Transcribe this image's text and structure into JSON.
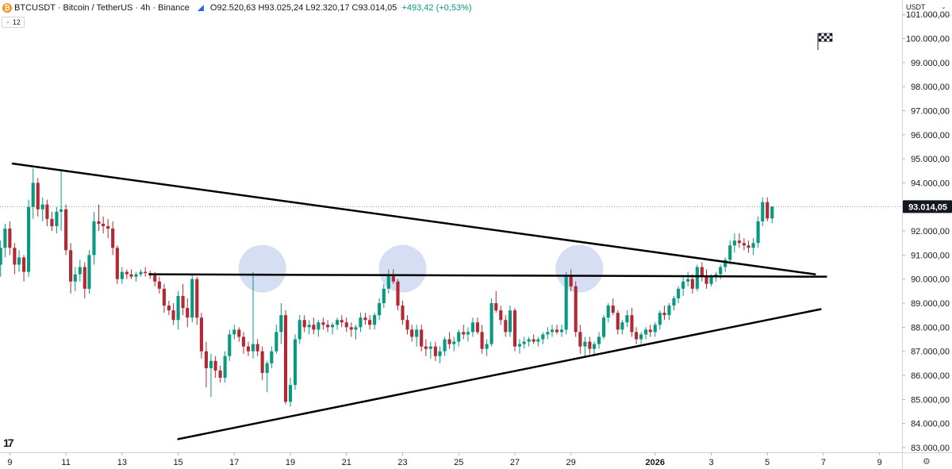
{
  "header": {
    "symbol_icon": "bitcoin-icon",
    "title": "BTCUSDT · Bitcoin / TetherUS · 4h · Binance",
    "ohlc": "O92.520,63 H93.025,24 L92.320,17 C93.014,05",
    "change": "+493,42 (+0,53%)"
  },
  "indicator_badge": "12",
  "price_scale": {
    "currency": "USDT",
    "last_price_label": "93.014,05",
    "colors": {
      "up": "#089981",
      "down": "#b22833",
      "last_price_bg": "#131722"
    }
  },
  "chart_data": {
    "type": "candlestick",
    "symbol": "BTCUSDT",
    "interval": "4h",
    "exchange": "Binance",
    "ylim": [
      82800,
      101600
    ],
    "xlim_days": [
      8.65,
      40.8
    ],
    "y_ticks": [
      {
        "v": 83000,
        "label": "83.000,00"
      },
      {
        "v": 84000,
        "label": "84.000,00"
      },
      {
        "v": 85000,
        "label": "85.000,00"
      },
      {
        "v": 86000,
        "label": "86.000,00"
      },
      {
        "v": 87000,
        "label": "87.000,00"
      },
      {
        "v": 88000,
        "label": "88.000,00"
      },
      {
        "v": 89000,
        "label": "89.000,00"
      },
      {
        "v": 90000,
        "label": "90.000,00"
      },
      {
        "v": 91000,
        "label": "91.000,00"
      },
      {
        "v": 92000,
        "label": "92.000,00"
      },
      {
        "v": 93000,
        "label": "93.000,00"
      },
      {
        "v": 94000,
        "label": "94.000,00"
      },
      {
        "v": 95000,
        "label": "95.000,00"
      },
      {
        "v": 96000,
        "label": "96.000,00"
      },
      {
        "v": 97000,
        "label": "97.000,00"
      },
      {
        "v": 98000,
        "label": "98.000,00"
      },
      {
        "v": 99000,
        "label": "99.000,00"
      },
      {
        "v": 100000,
        "label": "100.000,00"
      },
      {
        "v": 101000,
        "label": "101.000,00"
      }
    ],
    "x_ticks": [
      {
        "day": 9,
        "label": "9"
      },
      {
        "day": 11,
        "label": "11"
      },
      {
        "day": 13,
        "label": "13"
      },
      {
        "day": 15,
        "label": "15"
      },
      {
        "day": 17,
        "label": "17"
      },
      {
        "day": 19,
        "label": "19"
      },
      {
        "day": 21,
        "label": "21"
      },
      {
        "day": 23,
        "label": "23"
      },
      {
        "day": 25,
        "label": "25"
      },
      {
        "day": 27,
        "label": "27"
      },
      {
        "day": 29,
        "label": "29"
      },
      {
        "day": 32,
        "label": "2026",
        "bold": true
      },
      {
        "day": 34,
        "label": "3"
      },
      {
        "day": 36,
        "label": "5"
      },
      {
        "day": 38,
        "label": "7"
      },
      {
        "day": 40,
        "label": "9"
      }
    ],
    "last_price": 93014.05,
    "candles": [
      [
        8.67,
        90600,
        91600,
        90100,
        91300
      ],
      [
        8.83,
        91300,
        92300,
        90900,
        92100
      ],
      [
        9.0,
        92100,
        92400,
        91000,
        91300
      ],
      [
        9.17,
        91300,
        91500,
        90200,
        90600
      ],
      [
        9.33,
        90600,
        91200,
        90300,
        90900
      ],
      [
        9.5,
        90900,
        91000,
        89900,
        90300
      ],
      [
        9.67,
        90300,
        93300,
        90100,
        93000
      ],
      [
        9.83,
        93000,
        94600,
        92500,
        94000
      ],
      [
        10.0,
        94000,
        94200,
        92600,
        92900
      ],
      [
        10.17,
        92900,
        93400,
        92400,
        93100
      ],
      [
        10.33,
        93100,
        93300,
        92200,
        92500
      ],
      [
        10.5,
        92500,
        92800,
        92000,
        92200
      ],
      [
        10.67,
        92200,
        93000,
        91900,
        92800
      ],
      [
        10.83,
        92800,
        94500,
        92000,
        92900
      ],
      [
        11.0,
        92900,
        93100,
        91000,
        91200
      ],
      [
        11.17,
        91200,
        91500,
        89400,
        89900
      ],
      [
        11.33,
        89900,
        90500,
        89500,
        90200
      ],
      [
        11.5,
        90200,
        90800,
        89900,
        90500
      ],
      [
        11.67,
        90500,
        90700,
        89200,
        89600
      ],
      [
        11.83,
        89600,
        91200,
        89400,
        91000
      ],
      [
        12.0,
        91000,
        92800,
        90600,
        92400
      ],
      [
        12.17,
        92400,
        93100,
        92000,
        92300
      ],
      [
        12.33,
        92300,
        92600,
        91900,
        92200
      ],
      [
        12.5,
        92200,
        92500,
        91700,
        92100
      ],
      [
        12.67,
        92100,
        92400,
        91000,
        91300
      ],
      [
        12.83,
        91300,
        91400,
        89800,
        90000
      ],
      [
        13.0,
        90000,
        90500,
        89800,
        90300
      ],
      [
        13.17,
        90300,
        90400,
        90000,
        90200
      ],
      [
        13.33,
        90200,
        90400,
        90000,
        90100
      ],
      [
        13.5,
        90100,
        90300,
        89900,
        90200
      ],
      [
        13.67,
        90200,
        90400,
        90100,
        90300
      ],
      [
        13.83,
        90300,
        90500,
        90100,
        90250
      ],
      [
        14.0,
        90250,
        90350,
        90000,
        90150
      ],
      [
        14.17,
        90150,
        90300,
        89700,
        89900
      ],
      [
        14.33,
        89900,
        90100,
        89400,
        89600
      ],
      [
        14.5,
        89600,
        89800,
        88600,
        88900
      ],
      [
        14.67,
        88900,
        89100,
        88500,
        88700
      ],
      [
        14.83,
        88700,
        89000,
        88100,
        88300
      ],
      [
        15.0,
        88300,
        89500,
        87900,
        89300
      ],
      [
        15.17,
        89300,
        89800,
        88500,
        88800
      ],
      [
        15.33,
        88800,
        89200,
        88000,
        88400
      ],
      [
        15.5,
        88400,
        90200,
        88200,
        90000
      ],
      [
        15.67,
        90000,
        90100,
        88100,
        88400
      ],
      [
        15.83,
        88400,
        88600,
        86700,
        87000
      ],
      [
        16.0,
        87000,
        87400,
        85500,
        86300
      ],
      [
        16.17,
        86300,
        86900,
        85100,
        86600
      ],
      [
        16.33,
        86600,
        86800,
        85900,
        86200
      ],
      [
        16.5,
        86200,
        86400,
        85700,
        85900
      ],
      [
        16.67,
        85900,
        87000,
        85700,
        86800
      ],
      [
        16.83,
        86800,
        87900,
        86600,
        87700
      ],
      [
        17.0,
        87700,
        88100,
        87500,
        87900
      ],
      [
        17.17,
        87900,
        88000,
        87400,
        87600
      ],
      [
        17.33,
        87600,
        87800,
        86900,
        87200
      ],
      [
        17.5,
        87200,
        87400,
        86800,
        87000
      ],
      [
        17.67,
        87000,
        90300,
        86700,
        87300
      ],
      [
        17.83,
        87300,
        87500,
        86800,
        87000
      ],
      [
        18.0,
        87000,
        87200,
        85800,
        86100
      ],
      [
        18.17,
        86100,
        86600,
        85300,
        86500
      ],
      [
        18.33,
        86500,
        87200,
        86300,
        87000
      ],
      [
        18.5,
        87000,
        88100,
        86900,
        87800
      ],
      [
        18.67,
        87800,
        89000,
        87300,
        88500
      ],
      [
        18.83,
        88500,
        88700,
        84800,
        84900
      ],
      [
        19.0,
        84900,
        85900,
        84700,
        85600
      ],
      [
        19.17,
        85600,
        87700,
        85400,
        87500
      ],
      [
        19.33,
        87500,
        88500,
        87300,
        88300
      ],
      [
        19.5,
        88300,
        88500,
        87800,
        88000
      ],
      [
        19.67,
        88000,
        88300,
        87700,
        88100
      ],
      [
        19.83,
        88100,
        88400,
        87700,
        87900
      ],
      [
        20.0,
        87900,
        88300,
        87600,
        88200
      ],
      [
        20.17,
        88200,
        88400,
        87900,
        88100
      ],
      [
        20.33,
        88100,
        88300,
        87800,
        88000
      ],
      [
        20.5,
        88000,
        88200,
        87700,
        88100
      ],
      [
        20.67,
        88100,
        88400,
        87900,
        88300
      ],
      [
        20.83,
        88300,
        88500,
        88000,
        88200
      ],
      [
        21.0,
        88200,
        88400,
        87800,
        88000
      ],
      [
        21.17,
        88000,
        88200,
        87600,
        87900
      ],
      [
        21.33,
        87900,
        88100,
        87500,
        88000
      ],
      [
        21.5,
        88000,
        88600,
        87800,
        88400
      ],
      [
        21.67,
        88400,
        88600,
        88100,
        88300
      ],
      [
        21.83,
        88300,
        88500,
        87900,
        88100
      ],
      [
        22.0,
        88100,
        88600,
        87900,
        88500
      ],
      [
        22.17,
        88500,
        89200,
        88300,
        89000
      ],
      [
        22.33,
        89000,
        89800,
        88800,
        89600
      ],
      [
        22.5,
        89600,
        90400,
        89400,
        90200
      ],
      [
        22.67,
        90200,
        90400,
        89800,
        89900
      ],
      [
        22.83,
        89900,
        90000,
        88700,
        88900
      ],
      [
        23.0,
        88900,
        89100,
        88100,
        88300
      ],
      [
        23.17,
        88300,
        88500,
        87700,
        87900
      ],
      [
        23.33,
        87900,
        88100,
        87400,
        87600
      ],
      [
        23.5,
        87600,
        88100,
        87200,
        87900
      ],
      [
        23.67,
        87900,
        88100,
        87000,
        87200
      ],
      [
        23.83,
        87200,
        87500,
        86800,
        87100
      ],
      [
        24.0,
        87100,
        87400,
        86700,
        87200
      ],
      [
        24.17,
        87200,
        87400,
        86600,
        86800
      ],
      [
        24.33,
        86800,
        87200,
        86500,
        87000
      ],
      [
        24.5,
        87000,
        87600,
        86800,
        87500
      ],
      [
        24.67,
        87500,
        87800,
        87100,
        87300
      ],
      [
        24.83,
        87300,
        87600,
        87000,
        87400
      ],
      [
        25.0,
        87400,
        87900,
        87200,
        87800
      ],
      [
        25.17,
        87800,
        88100,
        87500,
        87700
      ],
      [
        25.33,
        87700,
        88000,
        87400,
        87800
      ],
      [
        25.5,
        87800,
        88400,
        87600,
        88200
      ],
      [
        25.67,
        88200,
        88400,
        87700,
        87800
      ],
      [
        25.83,
        87800,
        88100,
        86900,
        87100
      ],
      [
        26.0,
        87100,
        87500,
        86800,
        87300
      ],
      [
        26.17,
        87300,
        89200,
        87200,
        89000
      ],
      [
        26.33,
        89000,
        89500,
        88600,
        88700
      ],
      [
        26.5,
        88700,
        88900,
        88100,
        88300
      ],
      [
        26.67,
        88300,
        88500,
        87600,
        87800
      ],
      [
        26.83,
        87800,
        88900,
        87600,
        88700
      ],
      [
        27.0,
        88700,
        88800,
        87000,
        87200
      ],
      [
        27.17,
        87200,
        87500,
        86900,
        87300
      ],
      [
        27.33,
        87300,
        87600,
        87100,
        87400
      ],
      [
        27.5,
        87400,
        87600,
        87200,
        87500
      ],
      [
        27.67,
        87500,
        87700,
        87300,
        87400
      ],
      [
        27.83,
        87400,
        87600,
        87200,
        87500
      ],
      [
        28.0,
        87500,
        87800,
        87300,
        87700
      ],
      [
        28.17,
        87700,
        88000,
        87500,
        87800
      ],
      [
        28.33,
        87800,
        88100,
        87600,
        87900
      ],
      [
        28.5,
        87900,
        88100,
        87700,
        87800
      ],
      [
        28.67,
        87800,
        88100,
        87600,
        87900
      ],
      [
        28.83,
        87900,
        90300,
        87700,
        90100
      ],
      [
        29.0,
        90100,
        90400,
        89500,
        89700
      ],
      [
        29.17,
        89700,
        89900,
        87600,
        87800
      ],
      [
        29.33,
        87800,
        88100,
        86900,
        87200
      ],
      [
        29.5,
        87200,
        87600,
        86800,
        87400
      ],
      [
        29.67,
        87400,
        87600,
        86900,
        87100
      ],
      [
        29.83,
        87100,
        87400,
        86800,
        87300
      ],
      [
        30.0,
        87300,
        87800,
        87100,
        87600
      ],
      [
        30.17,
        87600,
        88500,
        87500,
        88400
      ],
      [
        30.33,
        88400,
        89000,
        88200,
        88900
      ],
      [
        30.5,
        88900,
        89200,
        88500,
        88600
      ],
      [
        30.67,
        88600,
        88700,
        87700,
        87900
      ],
      [
        30.83,
        87900,
        88300,
        87700,
        88200
      ],
      [
        31.0,
        88200,
        88700,
        88000,
        88500
      ],
      [
        31.17,
        88500,
        88800,
        87600,
        87800
      ],
      [
        31.33,
        87800,
        88000,
        87300,
        87500
      ],
      [
        31.5,
        87500,
        87800,
        87300,
        87700
      ],
      [
        31.67,
        87700,
        88000,
        87500,
        87900
      ],
      [
        31.83,
        87900,
        88100,
        87600,
        87800
      ],
      [
        32.0,
        87800,
        88200,
        87600,
        88100
      ],
      [
        32.17,
        88100,
        88700,
        87900,
        88600
      ],
      [
        32.33,
        88600,
        88900,
        88300,
        88500
      ],
      [
        32.5,
        88500,
        89000,
        88300,
        88900
      ],
      [
        32.67,
        88900,
        89300,
        88700,
        89200
      ],
      [
        32.83,
        89200,
        89700,
        89000,
        89600
      ],
      [
        33.0,
        89600,
        90100,
        89300,
        89900
      ],
      [
        33.17,
        89900,
        90300,
        89700,
        90000
      ],
      [
        33.33,
        90000,
        90200,
        89400,
        89600
      ],
      [
        33.5,
        89600,
        90600,
        89500,
        90500
      ],
      [
        33.67,
        90500,
        90700,
        89900,
        90100
      ],
      [
        33.83,
        90100,
        90400,
        89600,
        89800
      ],
      [
        34.0,
        89800,
        90200,
        89700,
        90100
      ],
      [
        34.17,
        90100,
        90300,
        89900,
        90200
      ],
      [
        34.33,
        90200,
        90600,
        90000,
        90500
      ],
      [
        34.5,
        90500,
        90900,
        90300,
        90800
      ],
      [
        34.67,
        90800,
        91600,
        90600,
        91400
      ],
      [
        34.83,
        91400,
        91900,
        91100,
        91600
      ],
      [
        35.0,
        91600,
        91900,
        91300,
        91500
      ],
      [
        35.17,
        91500,
        91700,
        91200,
        91400
      ],
      [
        35.33,
        91400,
        91600,
        91100,
        91300
      ],
      [
        35.5,
        91300,
        91700,
        91000,
        91500
      ],
      [
        35.67,
        91500,
        92600,
        91300,
        92400
      ],
      [
        35.83,
        92400,
        93400,
        92200,
        93200
      ],
      [
        36.0,
        93200,
        93400,
        92400,
        92520
      ],
      [
        36.17,
        92520.63,
        93025.24,
        92320.17,
        93014.05
      ]
    ],
    "lines": [
      {
        "name": "descending-trendline",
        "p1": [
          9.1,
          94800
        ],
        "p2": [
          37.7,
          90200
        ]
      },
      {
        "name": "horizontal-resistance",
        "p1": [
          14.0,
          90200
        ],
        "p2": [
          38.1,
          90100
        ]
      },
      {
        "name": "ascending-trendline",
        "p1": [
          15.0,
          83350
        ],
        "p2": [
          37.9,
          88750
        ]
      }
    ],
    "circles": [
      {
        "day": 18.0,
        "price": 90300
      },
      {
        "day": 23.0,
        "price": 90300
      },
      {
        "day": 29.3,
        "price": 90300
      }
    ]
  }
}
